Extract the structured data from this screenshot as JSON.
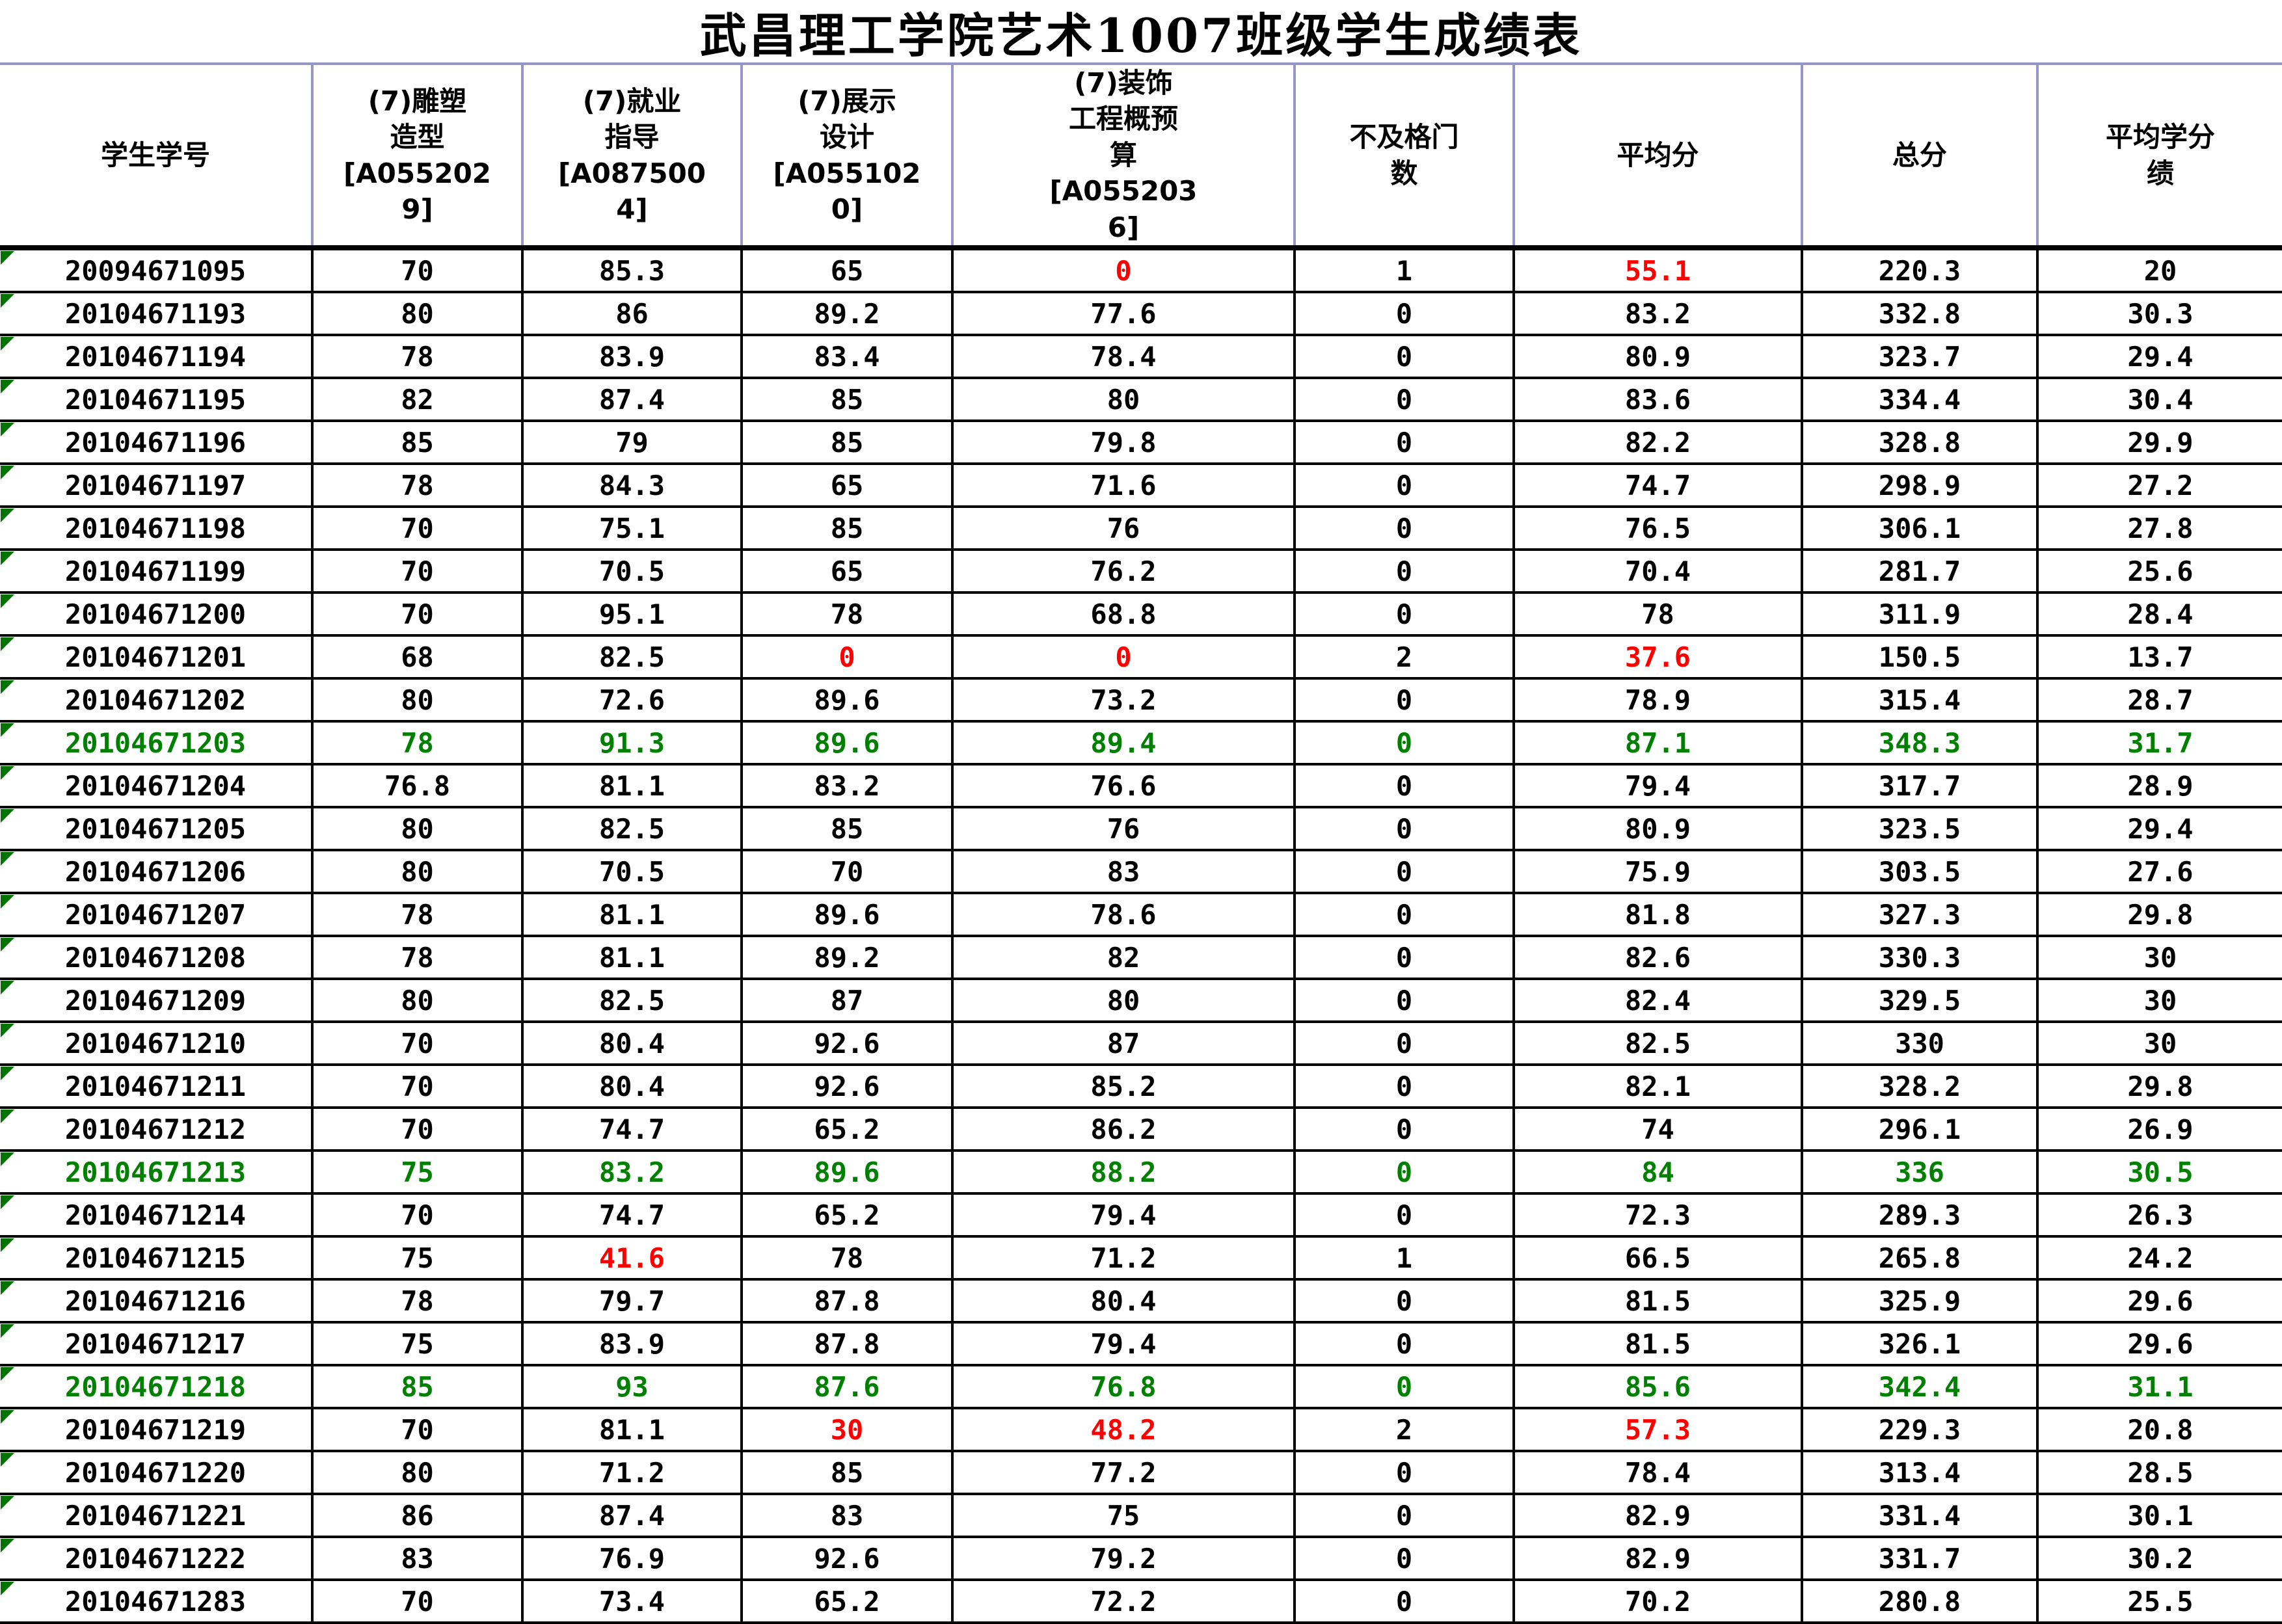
{
  "title": "武昌理工学院艺术1007班级学生成绩表",
  "colors": {
    "pass_text": "#000000",
    "fail_text": "#ff0000",
    "top_student_text": "#008000",
    "header_border": "#9595c8",
    "body_border": "#000000",
    "comment_triangle": "#007300"
  },
  "table": {
    "columns": [
      "学生学号",
      "(7)雕塑\n造型\n[A055202\n9]",
      "(7)就业\n指导\n[A087500\n4]",
      "(7)展示\n设计\n[A055102\n0]",
      "(7)装饰\n工程概预\n算\n[A055203\n6]",
      "不及格门\n数",
      "平均分",
      "总分",
      "平均学分\n绩"
    ],
    "rows": [
      {
        "cells": [
          "20094671095",
          "70",
          "85.3",
          "65",
          "0",
          "1",
          "55.1",
          "220.3",
          "20"
        ],
        "red": [
          4,
          6
        ]
      },
      {
        "cells": [
          "20104671193",
          "80",
          "86",
          "89.2",
          "77.6",
          "0",
          "83.2",
          "332.8",
          "30.3"
        ]
      },
      {
        "cells": [
          "20104671194",
          "78",
          "83.9",
          "83.4",
          "78.4",
          "0",
          "80.9",
          "323.7",
          "29.4"
        ]
      },
      {
        "cells": [
          "20104671195",
          "82",
          "87.4",
          "85",
          "80",
          "0",
          "83.6",
          "334.4",
          "30.4"
        ]
      },
      {
        "cells": [
          "20104671196",
          "85",
          "79",
          "85",
          "79.8",
          "0",
          "82.2",
          "328.8",
          "29.9"
        ]
      },
      {
        "cells": [
          "20104671197",
          "78",
          "84.3",
          "65",
          "71.6",
          "0",
          "74.7",
          "298.9",
          "27.2"
        ]
      },
      {
        "cells": [
          "20104671198",
          "70",
          "75.1",
          "85",
          "76",
          "0",
          "76.5",
          "306.1",
          "27.8"
        ]
      },
      {
        "cells": [
          "20104671199",
          "70",
          "70.5",
          "65",
          "76.2",
          "0",
          "70.4",
          "281.7",
          "25.6"
        ]
      },
      {
        "cells": [
          "20104671200",
          "70",
          "95.1",
          "78",
          "68.8",
          "0",
          "78",
          "311.9",
          "28.4"
        ]
      },
      {
        "cells": [
          "20104671201",
          "68",
          "82.5",
          "0",
          "0",
          "2",
          "37.6",
          "150.5",
          "13.7"
        ],
        "red": [
          3,
          4,
          6
        ]
      },
      {
        "cells": [
          "20104671202",
          "80",
          "72.6",
          "89.6",
          "73.2",
          "0",
          "78.9",
          "315.4",
          "28.7"
        ]
      },
      {
        "cells": [
          "20104671203",
          "78",
          "91.3",
          "89.6",
          "89.4",
          "0",
          "87.1",
          "348.3",
          "31.7"
        ],
        "green": true
      },
      {
        "cells": [
          "20104671204",
          "76.8",
          "81.1",
          "83.2",
          "76.6",
          "0",
          "79.4",
          "317.7",
          "28.9"
        ]
      },
      {
        "cells": [
          "20104671205",
          "80",
          "82.5",
          "85",
          "76",
          "0",
          "80.9",
          "323.5",
          "29.4"
        ]
      },
      {
        "cells": [
          "20104671206",
          "80",
          "70.5",
          "70",
          "83",
          "0",
          "75.9",
          "303.5",
          "27.6"
        ]
      },
      {
        "cells": [
          "20104671207",
          "78",
          "81.1",
          "89.6",
          "78.6",
          "0",
          "81.8",
          "327.3",
          "29.8"
        ]
      },
      {
        "cells": [
          "20104671208",
          "78",
          "81.1",
          "89.2",
          "82",
          "0",
          "82.6",
          "330.3",
          "30"
        ]
      },
      {
        "cells": [
          "20104671209",
          "80",
          "82.5",
          "87",
          "80",
          "0",
          "82.4",
          "329.5",
          "30"
        ]
      },
      {
        "cells": [
          "20104671210",
          "70",
          "80.4",
          "92.6",
          "87",
          "0",
          "82.5",
          "330",
          "30"
        ]
      },
      {
        "cells": [
          "20104671211",
          "70",
          "80.4",
          "92.6",
          "85.2",
          "0",
          "82.1",
          "328.2",
          "29.8"
        ]
      },
      {
        "cells": [
          "20104671212",
          "70",
          "74.7",
          "65.2",
          "86.2",
          "0",
          "74",
          "296.1",
          "26.9"
        ]
      },
      {
        "cells": [
          "20104671213",
          "75",
          "83.2",
          "89.6",
          "88.2",
          "0",
          "84",
          "336",
          "30.5"
        ],
        "green": true
      },
      {
        "cells": [
          "20104671214",
          "70",
          "74.7",
          "65.2",
          "79.4",
          "0",
          "72.3",
          "289.3",
          "26.3"
        ]
      },
      {
        "cells": [
          "20104671215",
          "75",
          "41.6",
          "78",
          "71.2",
          "1",
          "66.5",
          "265.8",
          "24.2"
        ],
        "red": [
          2
        ]
      },
      {
        "cells": [
          "20104671216",
          "78",
          "79.7",
          "87.8",
          "80.4",
          "0",
          "81.5",
          "325.9",
          "29.6"
        ]
      },
      {
        "cells": [
          "20104671217",
          "75",
          "83.9",
          "87.8",
          "79.4",
          "0",
          "81.5",
          "326.1",
          "29.6"
        ]
      },
      {
        "cells": [
          "20104671218",
          "85",
          "93",
          "87.6",
          "76.8",
          "0",
          "85.6",
          "342.4",
          "31.1"
        ],
        "green": true
      },
      {
        "cells": [
          "20104671219",
          "70",
          "81.1",
          "30",
          "48.2",
          "2",
          "57.3",
          "229.3",
          "20.8"
        ],
        "red": [
          3,
          4,
          6
        ]
      },
      {
        "cells": [
          "20104671220",
          "80",
          "71.2",
          "85",
          "77.2",
          "0",
          "78.4",
          "313.4",
          "28.5"
        ]
      },
      {
        "cells": [
          "20104671221",
          "86",
          "87.4",
          "83",
          "75",
          "0",
          "82.9",
          "331.4",
          "30.1"
        ]
      },
      {
        "cells": [
          "20104671222",
          "83",
          "76.9",
          "92.6",
          "79.2",
          "0",
          "82.9",
          "331.7",
          "30.2"
        ]
      },
      {
        "cells": [
          "20104671283",
          "70",
          "73.4",
          "65.2",
          "72.2",
          "0",
          "70.2",
          "280.8",
          "25.5"
        ]
      }
    ]
  }
}
